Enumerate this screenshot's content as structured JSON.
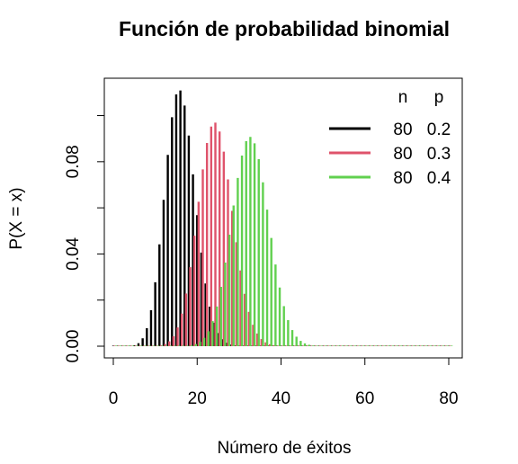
{
  "chart_data": {
    "type": "bar",
    "title": "Función de probabilidad binomial",
    "xlabel": "Número de éxitos",
    "ylabel": "P(X = x)",
    "xlim": [
      0,
      80
    ],
    "ylim": [
      0,
      0.11
    ],
    "xticks": [
      0,
      20,
      40,
      60,
      80
    ],
    "xtick_labels": [
      "0",
      "20",
      "40",
      "60",
      "80"
    ],
    "yticks": [
      0,
      0.02,
      0.04,
      0.06,
      0.08,
      0.1
    ],
    "ytick_labels": [
      "0.00",
      "",
      "0.04",
      "",
      "0.08",
      ""
    ],
    "grid": false,
    "legend_position": "top-right",
    "legend_headers": [
      "n",
      "p"
    ],
    "series": [
      {
        "n": "80",
        "p": "0.2",
        "trials": 80,
        "prob": 0.2,
        "color": "#000000"
      },
      {
        "n": "80",
        "p": "0.3",
        "trials": 80,
        "prob": 0.3,
        "color": "#DF536B"
      },
      {
        "n": "80",
        "p": "0.4",
        "trials": 80,
        "prob": 0.4,
        "color": "#61D04F"
      }
    ]
  }
}
